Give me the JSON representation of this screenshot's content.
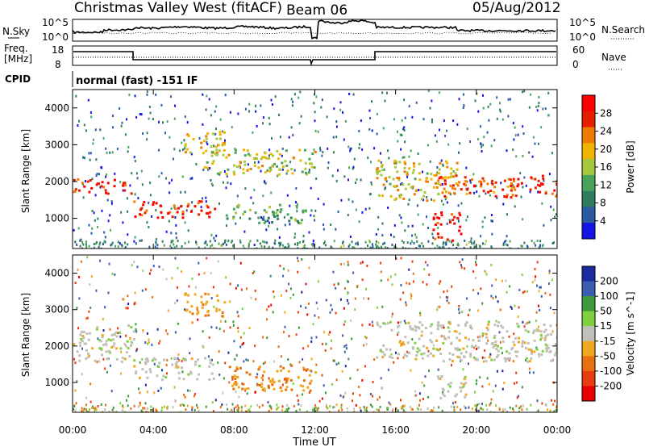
{
  "header": {
    "title": "Christmas Valley West (fitACF)",
    "beam": "Beam 06",
    "date": "05/Aug/2012"
  },
  "nsky_panel": {
    "left_label": "N.Sky",
    "left_ticks": [
      "10^5",
      "10^0"
    ],
    "right_label": "N.Search",
    "right_ticks": [
      "10^5",
      "10^0"
    ]
  },
  "freq_panel": {
    "left_label_line1": "Freq.",
    "left_label_line2": "[MHz]",
    "left_ticks": [
      "18",
      "8"
    ],
    "right_label": "Nave",
    "right_ticks": [
      "60",
      "0"
    ]
  },
  "cpid": {
    "label": "CPID",
    "text": "normal (fast) -151 IF"
  },
  "colors": {
    "power_scale": [
      "#1414e6",
      "#2a5aa0",
      "#2e7d5e",
      "#4aa35a",
      "#a6c83c",
      "#f0b400",
      "#f07a00",
      "#e61e00",
      "#ff0000"
    ],
    "velocity_scale": [
      "#1a2aa0",
      "#3a5fb0",
      "#3c9a3c",
      "#7fd040",
      "#c0c0b8",
      "#f0a820",
      "#e87010",
      "#e83c10",
      "#e60000"
    ]
  },
  "chart_data": [
    {
      "type": "heatmap",
      "panel": "power",
      "ylabel": "Slant Range [km]",
      "xlabel": "",
      "x_ticks": [
        "00:00",
        "04:00",
        "08:00",
        "12:00",
        "16:00",
        "20:00",
        "00:00"
      ],
      "y_ticks": [
        "1000",
        "2000",
        "3000",
        "4000"
      ],
      "ylim": [
        180,
        4500
      ],
      "xlim_hours": [
        0,
        24
      ],
      "colorbar": {
        "label": "Power [dB]",
        "ticks": [
          "4",
          "8",
          "12",
          "16",
          "20",
          "24",
          "28"
        ],
        "range": [
          0,
          30
        ]
      },
      "features": [
        {
          "t0": 0,
          "t1": 3,
          "r0": 1700,
          "r1": 2100,
          "level": 26
        },
        {
          "t0": 3,
          "t1": 7,
          "r0": 1050,
          "r1": 1500,
          "level": 26
        },
        {
          "t0": 5.5,
          "t1": 7.5,
          "r0": 2800,
          "r1": 3400,
          "level": 18
        },
        {
          "t0": 6.5,
          "t1": 12,
          "r0": 2200,
          "r1": 2900,
          "level": 16
        },
        {
          "t0": 7.5,
          "t1": 11.5,
          "r0": 900,
          "r1": 1400,
          "level": 12
        },
        {
          "t0": 15,
          "t1": 19,
          "r0": 1500,
          "r1": 2600,
          "level": 18
        },
        {
          "t0": 18,
          "t1": 24,
          "r0": 1600,
          "r1": 2200,
          "level": 24
        },
        {
          "t0": 17.8,
          "t1": 19.2,
          "r0": 400,
          "r1": 1200,
          "level": 28
        }
      ]
    },
    {
      "type": "heatmap",
      "panel": "velocity",
      "ylabel": "Slant Range [km]",
      "xlabel": "Time UT",
      "x_ticks": [
        "00:00",
        "04:00",
        "08:00",
        "12:00",
        "16:00",
        "20:00",
        "00:00"
      ],
      "y_ticks": [
        "1000",
        "2000",
        "3000",
        "4000"
      ],
      "ylim": [
        180,
        4500
      ],
      "xlim_hours": [
        0,
        24
      ],
      "colorbar": {
        "label": "Velocity [m s^-1]",
        "ticks": [
          "200",
          "100",
          "50",
          "15",
          "-15",
          "-50",
          "-100",
          "-200"
        ],
        "range": [
          -250,
          250
        ]
      },
      "features": [
        {
          "t0": 0,
          "t1": 3,
          "r0": 1600,
          "r1": 2600,
          "velocity": 0
        },
        {
          "t0": 3,
          "t1": 7,
          "r0": 1100,
          "r1": 1700,
          "velocity": 0
        },
        {
          "t0": 5.5,
          "t1": 7.5,
          "r0": 2800,
          "r1": 3500,
          "velocity": -40
        },
        {
          "t0": 7.5,
          "t1": 12,
          "r0": 800,
          "r1": 1500,
          "velocity": -50
        },
        {
          "t0": 15,
          "t1": 24,
          "r0": 1600,
          "r1": 2700,
          "velocity": 0
        },
        {
          "t0": 18,
          "t1": 19.5,
          "r0": 500,
          "r1": 1200,
          "velocity": 0
        }
      ]
    }
  ]
}
